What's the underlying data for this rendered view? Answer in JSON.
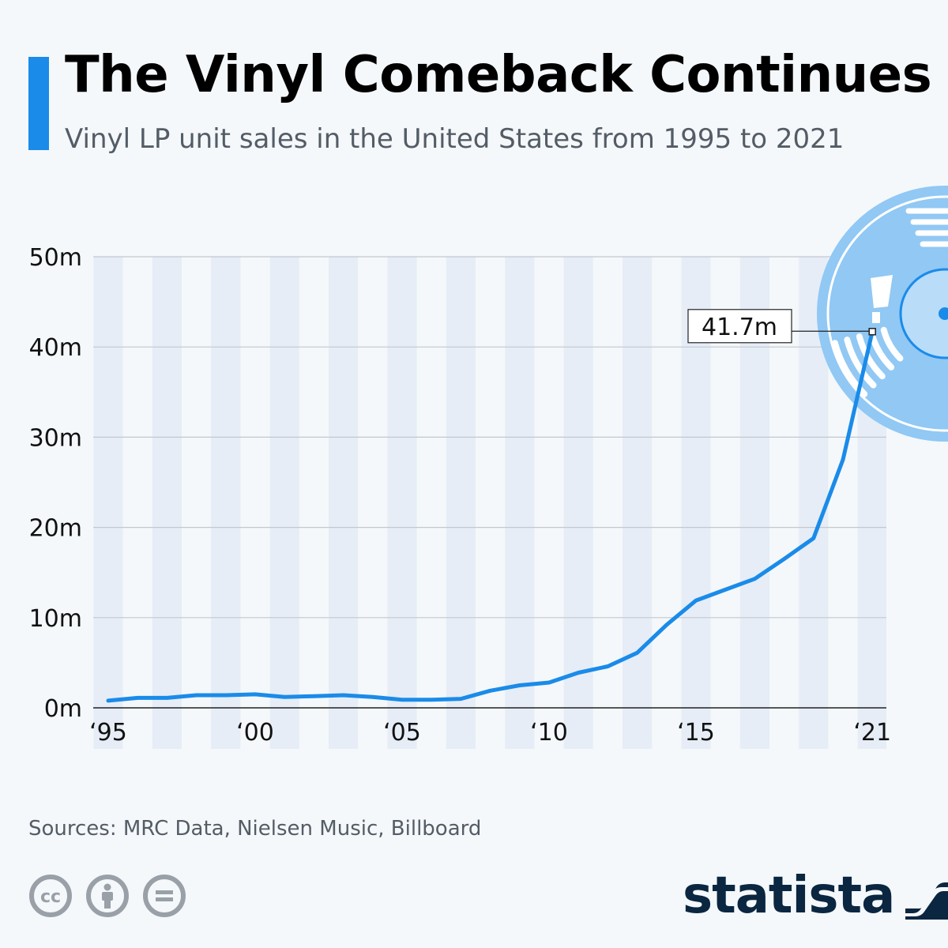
{
  "header": {
    "title": "The Vinyl Comeback Continues",
    "subtitle": "Vinyl LP unit sales in the United States from 1995 to 2021"
  },
  "footer": {
    "source": "Sources: MRC Data, Nielsen Music, Billboard",
    "brand": "statista",
    "license_icons": [
      "cc-icon",
      "attribution-icon",
      "no-derivatives-icon"
    ]
  },
  "colors": {
    "accent": "#1a8be9",
    "line": "#1a8be9",
    "band": "#e6edf7",
    "disc_outer": "#91c8f4",
    "disc_inner": "#b9dcf8",
    "brand": "#0b2640"
  },
  "chart_data": {
    "type": "line",
    "x": [
      1995,
      1996,
      1997,
      1998,
      1999,
      2000,
      2001,
      2002,
      2003,
      2004,
      2005,
      2006,
      2007,
      2008,
      2009,
      2010,
      2011,
      2012,
      2013,
      2014,
      2015,
      2016,
      2017,
      2018,
      2019,
      2020,
      2021
    ],
    "series": [
      {
        "values": [
          0.8,
          1.1,
          1.1,
          1.4,
          1.4,
          1.5,
          1.2,
          1.3,
          1.4,
          1.2,
          0.9,
          0.9,
          1.0,
          1.9,
          2.5,
          2.8,
          3.9,
          4.6,
          6.1,
          9.2,
          11.9,
          13.1,
          14.3,
          16.5,
          18.8,
          27.5,
          41.7
        ]
      }
    ],
    "x_tick_labels": [
      {
        "x": 1995,
        "label": "‘95"
      },
      {
        "x": 2000,
        "label": "‘00"
      },
      {
        "x": 2005,
        "label": "‘05"
      },
      {
        "x": 2010,
        "label": "‘10"
      },
      {
        "x": 2015,
        "label": "‘15"
      },
      {
        "x": 2021,
        "label": "‘21"
      }
    ],
    "y_ticks": [
      0,
      10,
      20,
      30,
      40,
      50
    ],
    "y_tick_labels": [
      "0m",
      "10m",
      "20m",
      "30m",
      "40m",
      "50m"
    ],
    "ylim": [
      0,
      50
    ],
    "xlim": [
      1995,
      2021
    ],
    "grid": true,
    "annotation": {
      "x": 2021,
      "y": 41.7,
      "label": "41.7m"
    }
  }
}
